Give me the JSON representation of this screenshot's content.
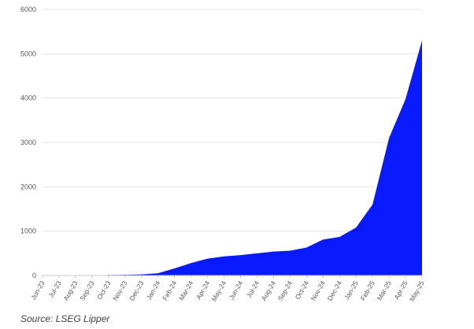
{
  "chart_data": {
    "type": "area",
    "categories": [
      "Jun-23",
      "Jul-23",
      "Aug-23",
      "Sep-23",
      "Oct-23",
      "Nov-23",
      "Dec-23",
      "Jan-24",
      "Feb-24",
      "Mar-24",
      "Apr-24",
      "May-24",
      "Jun-24",
      "Jul-24",
      "Aug-24",
      "Sep-24",
      "Oct-24",
      "Nov-24",
      "Dec-24",
      "Jan-25",
      "Feb-25",
      "Mar-25",
      "Apr-25",
      "May-25"
    ],
    "values": [
      0,
      2,
      3,
      5,
      10,
      15,
      25,
      50,
      160,
      280,
      380,
      430,
      460,
      500,
      540,
      560,
      630,
      810,
      870,
      1080,
      1600,
      3100,
      3980,
      5300
    ],
    "ylim": [
      0,
      6000
    ],
    "yticks": [
      0,
      1000,
      2000,
      3000,
      4000,
      5000,
      6000
    ],
    "grid": true,
    "fill_color": "#0a1aff",
    "grid_color": "#e3e3e3",
    "axis_color": "#c8c8c8",
    "tick_label_color": "#5a5a5a"
  },
  "source_note": "Source: LSEG Lipper"
}
